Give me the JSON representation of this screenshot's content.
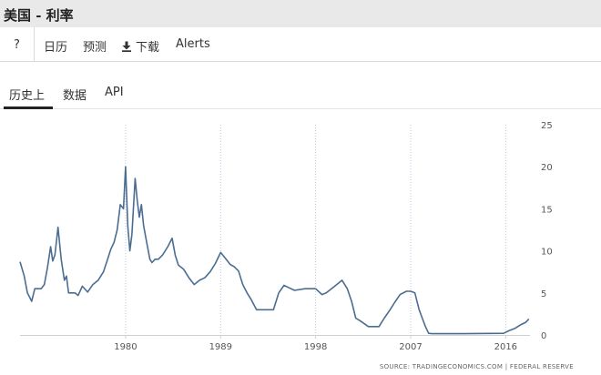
{
  "page": {
    "title": "美国 - 利率"
  },
  "toolbar": {
    "help_label": "?",
    "calendar_label": "日历",
    "forecast_label": "预测",
    "download_label": "下载",
    "alerts_label": "Alerts"
  },
  "tabs": {
    "history_label": "历史上",
    "data_label": "数据",
    "api_label": "API"
  },
  "source_text": "SOURCE: TRADINGECONOMICS.COM  |  FEDERAL RESERVE",
  "chart_data": {
    "type": "line",
    "title": "",
    "xlabel": "",
    "ylabel": "",
    "xlim": [
      1970,
      2018.3
    ],
    "ylim": [
      0,
      25
    ],
    "x_ticks": [
      1980,
      1989,
      1998,
      2007,
      2016
    ],
    "y_ticks": [
      0,
      5,
      10,
      15,
      20,
      25
    ],
    "y_axis_side": "right",
    "grid": "vertical dotted",
    "line_color": "#4a6d91",
    "series": [
      {
        "x": [
          1970.0,
          1970.4,
          1970.7,
          1971.1,
          1971.4,
          1971.7,
          1972.0,
          1972.3,
          1972.6,
          1972.9,
          1973.1,
          1973.3,
          1973.6,
          1973.9,
          1974.2,
          1974.4,
          1974.6,
          1974.9,
          1975.2,
          1975.5,
          1975.9,
          1976.4,
          1976.9,
          1977.4,
          1977.9,
          1978.3,
          1978.6,
          1978.9,
          1979.2,
          1979.5,
          1979.8,
          1980.0,
          1980.2,
          1980.4,
          1980.6,
          1980.9,
          1981.1,
          1981.3,
          1981.5,
          1981.7,
          1982.0,
          1982.3,
          1982.5,
          1982.8,
          1983.1,
          1983.5,
          1984.0,
          1984.4,
          1984.7,
          1985.0,
          1985.5,
          1986.0,
          1986.5,
          1987.0,
          1987.5,
          1988.0,
          1988.5,
          1989.0,
          1989.4,
          1989.9,
          1990.3,
          1990.7,
          1991.1,
          1991.5,
          1991.9,
          1992.4,
          1993.0,
          1994.0,
          1994.5,
          1995.0,
          1995.5,
          1996.0,
          1997.0,
          1998.0,
          1998.6,
          1999.0,
          1999.5,
          2000.0,
          2000.5,
          2001.0,
          2001.4,
          2001.8,
          2002.2,
          2003.0,
          2003.5,
          2004.0,
          2004.5,
          2005.0,
          2005.5,
          2006.0,
          2006.6,
          2007.0,
          2007.4,
          2007.8,
          2008.1,
          2008.4,
          2008.7,
          2009.0,
          2012.0,
          2015.8,
          2016.3,
          2016.9,
          2017.4,
          2017.9,
          2018.2
        ],
        "y": [
          8.7,
          7.0,
          5.0,
          4.0,
          5.5,
          5.5,
          5.5,
          6.0,
          8.0,
          10.5,
          8.8,
          9.5,
          12.8,
          9.0,
          6.5,
          7.0,
          5.0,
          5.0,
          5.0,
          4.7,
          5.8,
          5.1,
          6.0,
          6.5,
          7.5,
          9.0,
          10.2,
          11.0,
          12.5,
          15.5,
          15.0,
          20.0,
          13.0,
          10.0,
          12.0,
          18.6,
          16.0,
          14.0,
          15.5,
          13.0,
          11.0,
          9.0,
          8.6,
          9.0,
          9.0,
          9.5,
          10.5,
          11.5,
          9.5,
          8.3,
          7.8,
          6.8,
          6.0,
          6.5,
          6.8,
          7.5,
          8.5,
          9.8,
          9.2,
          8.4,
          8.1,
          7.6,
          6.0,
          5.0,
          4.2,
          3.0,
          3.0,
          3.0,
          5.0,
          5.9,
          5.6,
          5.3,
          5.5,
          5.5,
          4.8,
          5.0,
          5.5,
          6.0,
          6.5,
          5.5,
          4.0,
          2.0,
          1.7,
          1.0,
          1.0,
          1.0,
          2.0,
          2.9,
          3.9,
          4.8,
          5.2,
          5.2,
          5.0,
          3.0,
          2.0,
          1.0,
          0.2,
          0.15,
          0.15,
          0.2,
          0.5,
          0.8,
          1.2,
          1.5,
          1.9
        ]
      }
    ]
  }
}
